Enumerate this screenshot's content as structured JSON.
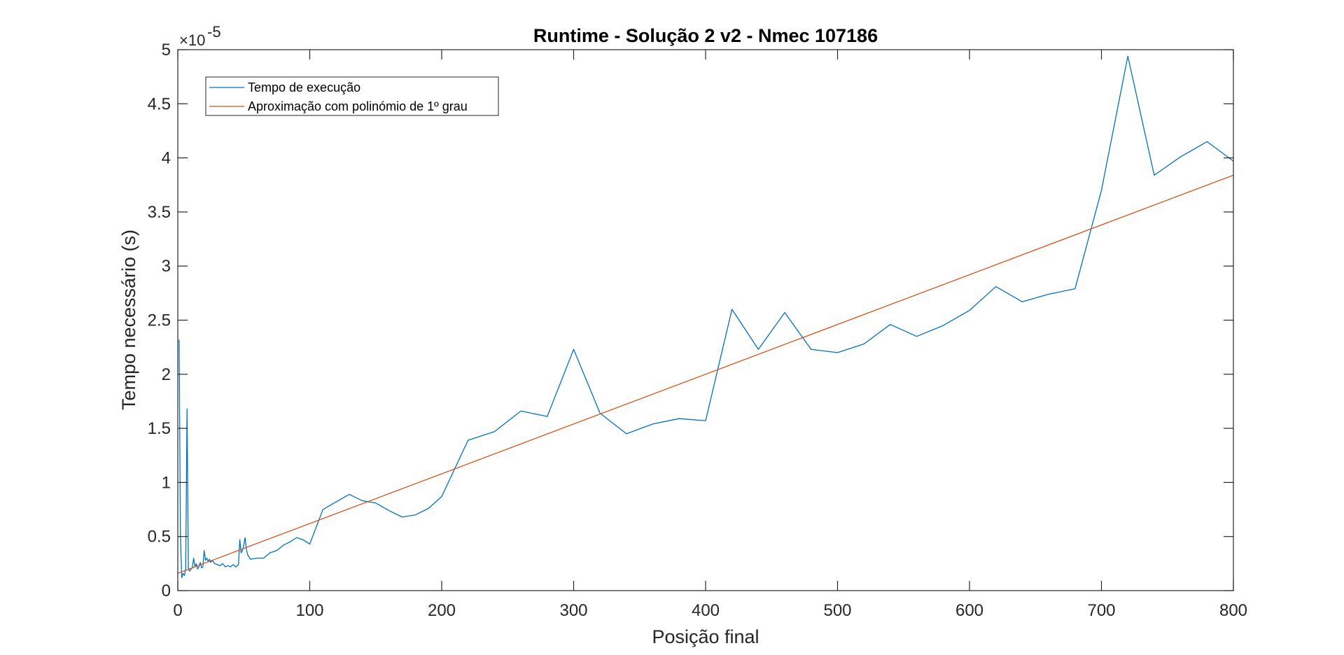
{
  "chart_data": {
    "type": "line",
    "title": "Runtime - Solução 2 v2 - Nmec 107186",
    "xlabel": "Posição final",
    "ylabel": "Tempo necessário (s)",
    "y_exponent_base": "×10",
    "y_exponent_power": "-5",
    "xlim": [
      0,
      800
    ],
    "ylim": [
      0,
      5
    ],
    "xticks": [
      0,
      100,
      200,
      300,
      400,
      500,
      600,
      700,
      800
    ],
    "yticks": [
      0,
      0.5,
      1,
      1.5,
      2,
      2.5,
      3,
      3.5,
      4,
      4.5,
      5
    ],
    "ytick_labels": [
      "0",
      "0.5",
      "1",
      "1.5",
      "2",
      "2.5",
      "3",
      "3.5",
      "4",
      "4.5",
      "5"
    ],
    "grid": false,
    "legend_position": "top-left",
    "series": [
      {
        "name": "Tempo de execução",
        "color": "#0072BD",
        "x": [
          1,
          2,
          3,
          4,
          5,
          6,
          7,
          8,
          9,
          10,
          11,
          12,
          13,
          14,
          15,
          16,
          17,
          18,
          19,
          20,
          21,
          22,
          23,
          24,
          25,
          26,
          28,
          30,
          32,
          34,
          36,
          38,
          40,
          42,
          44,
          46,
          47,
          48,
          49,
          50,
          51,
          52,
          53,
          55,
          60,
          65,
          70,
          75,
          80,
          85,
          90,
          95,
          100,
          110,
          120,
          130,
          140,
          150,
          160,
          170,
          180,
          190,
          200,
          220,
          240,
          260,
          280,
          300,
          320,
          340,
          360,
          380,
          400,
          420,
          440,
          460,
          480,
          500,
          520,
          540,
          560,
          580,
          600,
          620,
          640,
          660,
          680,
          700,
          720,
          740,
          760,
          780,
          800
        ],
        "y": [
          2.32,
          0.5,
          0.12,
          0.16,
          0.14,
          0.2,
          1.68,
          0.2,
          0.18,
          0.2,
          0.21,
          0.3,
          0.22,
          0.25,
          0.2,
          0.22,
          0.26,
          0.21,
          0.22,
          0.37,
          0.28,
          0.3,
          0.27,
          0.29,
          0.26,
          0.28,
          0.25,
          0.24,
          0.23,
          0.25,
          0.22,
          0.23,
          0.22,
          0.24,
          0.22,
          0.24,
          0.47,
          0.35,
          0.37,
          0.42,
          0.49,
          0.38,
          0.33,
          0.29,
          0.3,
          0.3,
          0.35,
          0.37,
          0.42,
          0.45,
          0.49,
          0.47,
          0.43,
          0.75,
          0.82,
          0.89,
          0.83,
          0.81,
          0.74,
          0.68,
          0.7,
          0.76,
          0.87,
          1.39,
          1.47,
          1.66,
          1.61,
          2.23,
          1.64,
          1.45,
          1.54,
          1.59,
          1.57,
          2.6,
          2.23,
          2.57,
          2.23,
          2.2,
          2.28,
          2.46,
          2.35,
          2.45,
          2.59,
          2.81,
          2.67,
          2.74,
          2.79,
          3.7,
          4.94,
          3.84,
          4.01,
          4.15,
          3.97
        ]
      },
      {
        "name": "Aproximação com polinómio de 1º grau",
        "color": "#D95319",
        "x": [
          0,
          800
        ],
        "y": [
          0.16,
          3.84
        ]
      }
    ]
  }
}
